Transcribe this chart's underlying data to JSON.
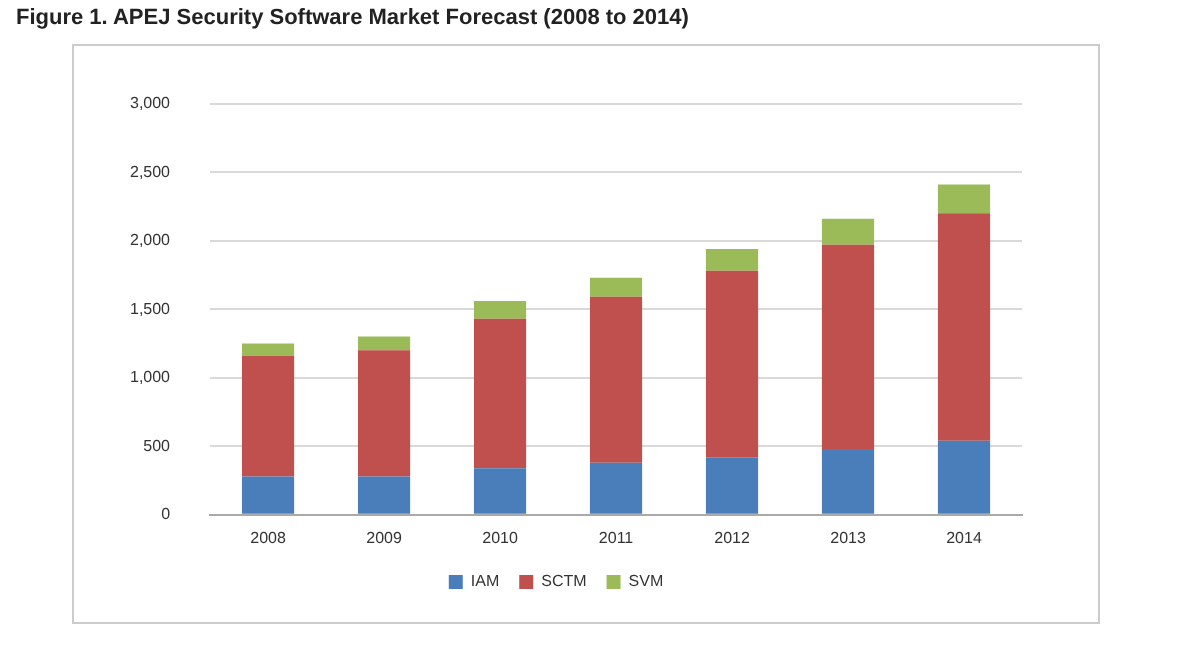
{
  "chart_data": {
    "type": "bar",
    "title": "Figure 1. APEJ Security Software Market Forecast (2008 to 2014)",
    "categories": [
      "2008",
      "2009",
      "2010",
      "2011",
      "2012",
      "2013",
      "2014"
    ],
    "series": [
      {
        "name": "IAM",
        "color": "#4a7ebb",
        "values": [
          280,
          280,
          340,
          380,
          420,
          480,
          540
        ]
      },
      {
        "name": "SCTM",
        "color": "#c0504d",
        "values": [
          880,
          920,
          1090,
          1210,
          1360,
          1490,
          1660
        ]
      },
      {
        "name": "SVM",
        "color": "#9bbb59",
        "values": [
          90,
          100,
          130,
          140,
          160,
          190,
          210
        ]
      }
    ],
    "stacked": true,
    "ylim": [
      0,
      3000
    ],
    "yticks": [
      0,
      500,
      {
        "value": 1000,
        "label": "1,000"
      },
      {
        "value": 1500,
        "label": "1,500"
      },
      {
        "value": 2000,
        "label": "2,000"
      },
      {
        "value": 2500,
        "label": "2,500"
      },
      {
        "value": 3000,
        "label": "3,000"
      }
    ],
    "grid": "y",
    "legend": "bottom"
  }
}
